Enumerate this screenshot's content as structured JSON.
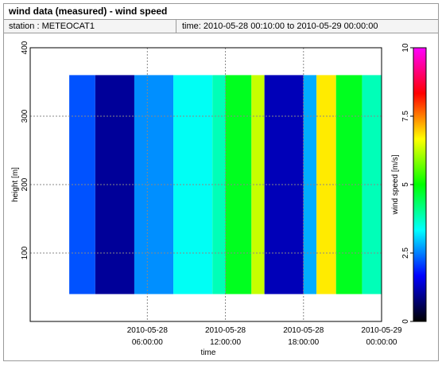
{
  "header": {
    "title": "wind data (measured) - wind speed",
    "station_label": "station : METEOCAT1",
    "time_label": "time: 2010-05-28 00:10:00 to 2010-05-29 00:00:00"
  },
  "chart_data": {
    "type": "heatmap",
    "xlabel": "time",
    "ylabel": "height [m]",
    "colorbar_label": "wind speed [m/s]",
    "ylim": [
      0,
      400
    ],
    "xlim_hours": [
      -3,
      24
    ],
    "x_ticks": [
      {
        "hour": 6,
        "line1": "2010-05-28",
        "line2": "06:00:00"
      },
      {
        "hour": 12,
        "line1": "2010-05-28",
        "line2": "12:00:00"
      },
      {
        "hour": 18,
        "line1": "2010-05-28",
        "line2": "18:00:00"
      },
      {
        "hour": 24,
        "line1": "2010-05-29",
        "line2": "00:00:00"
      }
    ],
    "y_ticks": [
      100,
      200,
      300,
      400
    ],
    "colorbar_range": [
      0,
      10
    ],
    "colorbar_ticks": [
      "0",
      "2.5",
      "5",
      "7.5",
      "10"
    ],
    "colormap": [
      "#000000",
      "#0000ff",
      "#00ffff",
      "#00ff00",
      "#ffff00",
      "#ff0000",
      "#ff00ff"
    ],
    "data_extent": {
      "time_start": "2010-05-28 00:10:00",
      "time_end": "2010-05-29 00:00:00",
      "height_range": [
        40,
        360
      ]
    },
    "segments": [
      {
        "t0": 0.0,
        "t1": 2.0,
        "speed": 2.2
      },
      {
        "t0": 2.0,
        "t1": 5.0,
        "speed": 1.0
      },
      {
        "t0": 5.0,
        "t1": 8.0,
        "speed": 2.6
      },
      {
        "t0": 8.0,
        "t1": 11.0,
        "speed": 3.4
      },
      {
        "t0": 11.0,
        "t1": 12.0,
        "speed": 3.8
      },
      {
        "t0": 12.0,
        "t1": 14.0,
        "speed": 4.8
      },
      {
        "t0": 14.0,
        "t1": 15.0,
        "speed": 6.3
      },
      {
        "t0": 15.0,
        "t1": 18.0,
        "speed": 1.2
      },
      {
        "t0": 18.0,
        "t1": 19.0,
        "speed": 2.8
      },
      {
        "t0": 19.0,
        "t1": 20.5,
        "speed": 6.8
      },
      {
        "t0": 20.5,
        "t1": 22.5,
        "speed": 4.8
      },
      {
        "t0": 22.5,
        "t1": 24.0,
        "speed": 3.8
      }
    ]
  }
}
